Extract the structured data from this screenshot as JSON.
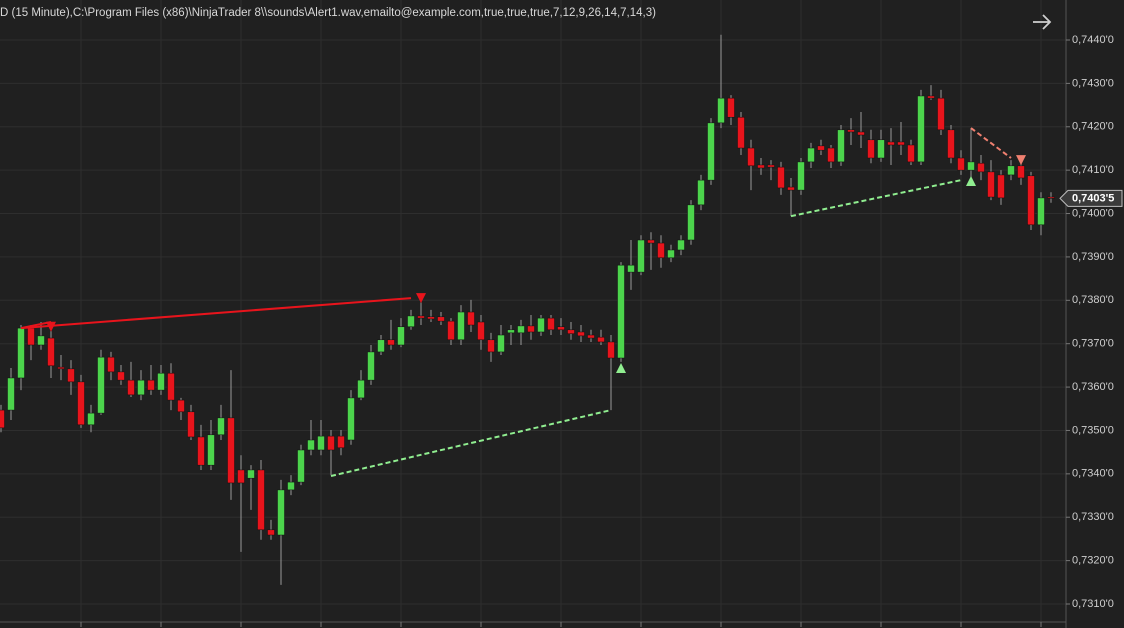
{
  "chart_data": {
    "type": "candlestick",
    "title": "D (15 Minute),C:\\Program Files (x86)\\NinjaTrader 8\\\\sounds\\Alert1.wav,emailto@example.com,true,true,true,7,12,9,26,14,7,14,3)",
    "up_color": "#4cd44c",
    "down_color": "#e8141c",
    "wick_color": "#9a9a9a",
    "open": [
      0.73547,
      0.73547,
      0.73621,
      0.73736,
      0.73697,
      0.73713,
      0.73646,
      0.73642,
      0.73612,
      0.73513,
      0.7354,
      0.73669,
      0.73635,
      0.73616,
      0.73582,
      0.73616,
      0.73593,
      0.73632,
      0.7357,
      0.73543,
      0.73485,
      0.7342,
      0.7349,
      0.73529,
      0.73409,
      0.7339,
      0.73409,
      0.73271,
      0.73259,
      0.73363,
      0.73381,
      0.73455,
      0.73455,
      0.73487,
      0.73487,
      0.73478,
      0.73575,
      0.73616,
      0.73681,
      0.73709,
      0.73697,
      0.73739,
      0.73764,
      0.73762,
      0.73762,
      0.73752,
      0.73709,
      0.73773,
      0.7375,
      0.73709,
      0.73681,
      0.73725,
      0.73725,
      0.73741,
      0.73727,
      0.73759,
      0.73739,
      0.73732,
      0.73727,
      0.7372,
      0.73715,
      0.73704,
      0.73667,
      0.73865,
      0.73865,
      0.73939,
      0.73932,
      0.73898,
      0.73916,
      0.73939,
      0.7402,
      0.74077,
      0.74209,
      0.74266,
      0.74222,
      0.74151,
      0.74112,
      0.74112,
      0.74107,
      0.74061,
      0.74054,
      0.74119,
      0.74156,
      0.74151,
      0.74119,
      0.74193,
      0.74188,
      0.7417,
      0.74128,
      0.74165,
      0.74165,
      0.74158,
      0.74119,
      0.74271,
      0.74266,
      0.74193,
      0.74128,
      0.741,
      0.74116,
      0.74096,
      0.74089,
      0.74089,
      0.7411,
      0.74087,
      0.73974,
      0.74038
    ],
    "high": [
      0.73559,
      0.73644,
      0.73743,
      0.73743,
      0.7375,
      0.7375,
      0.73674,
      0.73662,
      0.73628,
      0.73559,
      0.73686,
      0.73681,
      0.73651,
      0.73658,
      0.73639,
      0.73651,
      0.73651,
      0.73655,
      0.73575,
      0.73559,
      0.73513,
      0.73524,
      0.73559,
      0.73639,
      0.73443,
      0.7342,
      0.73432,
      0.73294,
      0.73386,
      0.73397,
      0.73467,
      0.73524,
      0.73524,
      0.73501,
      0.73501,
      0.73593,
      0.73639,
      0.73697,
      0.7372,
      0.73755,
      0.73759,
      0.73778,
      0.73801,
      0.73778,
      0.73773,
      0.73759,
      0.73789,
      0.73801,
      0.73766,
      0.73725,
      0.73743,
      0.73743,
      0.73755,
      0.73766,
      0.73766,
      0.73766,
      0.73759,
      0.7375,
      0.73743,
      0.73732,
      0.73732,
      0.7372,
      0.73888,
      0.73939,
      0.7395,
      0.73957,
      0.7395,
      0.73928,
      0.7395,
      0.74031,
      0.74089,
      0.7422,
      0.74412,
      0.74273,
      0.74234,
      0.7417,
      0.74128,
      0.74123,
      0.74119,
      0.74082,
      0.74128,
      0.74163,
      0.7417,
      0.74158,
      0.74204,
      0.7422,
      0.74234,
      0.74193,
      0.74193,
      0.74197,
      0.74211,
      0.7417,
      0.74285,
      0.74296,
      0.74285,
      0.74204,
      0.74146,
      0.74197,
      0.74135,
      0.74123,
      0.741,
      0.74123,
      0.74116,
      0.74096,
      0.74049,
      0.74049
    ],
    "low": [
      0.73496,
      0.73524,
      0.73593,
      0.73662,
      0.73686,
      0.73621,
      0.73616,
      0.73582,
      0.73506,
      0.73496,
      0.73536,
      0.73616,
      0.73605,
      0.73577,
      0.7357,
      0.73582,
      0.73582,
      0.73547,
      0.73524,
      0.73478,
      0.73409,
      0.73409,
      0.73478,
      0.7334,
      0.7322,
      0.73317,
      0.73248,
      0.73248,
      0.73144,
      0.73351,
      0.73374,
      0.73443,
      0.73443,
      0.73397,
      0.73443,
      0.73467,
      0.7357,
      0.73605,
      0.73674,
      0.73686,
      0.73692,
      0.73732,
      0.73743,
      0.7375,
      0.73743,
      0.73697,
      0.73697,
      0.73727,
      0.73686,
      0.73658,
      0.73674,
      0.73697,
      0.73697,
      0.73709,
      0.73718,
      0.7372,
      0.7372,
      0.73709,
      0.73704,
      0.73704,
      0.73697,
      0.73547,
      0.73658,
      0.73824,
      0.73858,
      0.7387,
      0.73875,
      0.73888,
      0.73904,
      0.73928,
      0.74008,
      0.74066,
      0.74197,
      0.74204,
      0.74135,
      0.74054,
      0.74089,
      0.74077,
      0.74043,
      0.73994,
      0.74043,
      0.74105,
      0.74135,
      0.74105,
      0.7411,
      0.74158,
      0.74151,
      0.74116,
      0.74119,
      0.74112,
      0.74135,
      0.74112,
      0.74112,
      0.74262,
      0.74181,
      0.74116,
      0.74089,
      0.74082,
      0.74077,
      0.74031,
      0.7402,
      0.74077,
      0.74066,
      0.73962,
      0.7395,
      0.74025
    ],
    "close": [
      0.73506,
      0.73621,
      0.73736,
      0.73697,
      0.73718,
      0.73649,
      0.73642,
      0.73612,
      0.73513,
      0.7354,
      0.73669,
      0.73635,
      0.73616,
      0.73582,
      0.73616,
      0.73593,
      0.73632,
      0.7357,
      0.73543,
      0.73485,
      0.7342,
      0.7349,
      0.73529,
      0.73379,
      0.73379,
      0.73409,
      0.73271,
      0.73259,
      0.73363,
      0.73381,
      0.73455,
      0.73478,
      0.73487,
      0.73455,
      0.7346,
      0.73575,
      0.73616,
      0.73681,
      0.73709,
      0.73697,
      0.73739,
      0.73764,
      0.73759,
      0.73757,
      0.73752,
      0.73709,
      0.73773,
      0.73743,
      0.73709,
      0.73681,
      0.7372,
      0.73732,
      0.73741,
      0.73727,
      0.73759,
      0.73732,
      0.73732,
      0.73723,
      0.73718,
      0.73713,
      0.73704,
      0.73667,
      0.73881,
      0.73881,
      0.73939,
      0.73932,
      0.73898,
      0.73916,
      0.73939,
      0.7402,
      0.74077,
      0.74209,
      0.74266,
      0.74222,
      0.74151,
      0.7411,
      0.74105,
      0.74107,
      0.74059,
      0.74054,
      0.74119,
      0.74151,
      0.74146,
      0.74119,
      0.74193,
      0.74188,
      0.74181,
      0.74128,
      0.7417,
      0.74158,
      0.74158,
      0.74119,
      0.74271,
      0.74266,
      0.74193,
      0.74128,
      0.741,
      0.74119,
      0.74096,
      0.74038,
      0.74036,
      0.7411,
      0.74082,
      0.73974,
      0.74036,
      0.74035
    ],
    "ylim": [
      0.730585,
      0.744922
    ],
    "yticks": [
      {
        "value": 0.731,
        "label": "0,7310'0"
      },
      {
        "value": 0.732,
        "label": "0,7320'0"
      },
      {
        "value": 0.733,
        "label": "0,7330'0"
      },
      {
        "value": 0.734,
        "label": "0,7340'0"
      },
      {
        "value": 0.735,
        "label": "0,7350'0"
      },
      {
        "value": 0.736,
        "label": "0,7360'0"
      },
      {
        "value": 0.737,
        "label": "0,7370'0"
      },
      {
        "value": 0.738,
        "label": "0,7380'0"
      },
      {
        "value": 0.739,
        "label": "0,7390'0"
      },
      {
        "value": 0.74,
        "label": "0,7400'0"
      },
      {
        "value": 0.741,
        "label": "0,7410'0"
      },
      {
        "value": 0.742,
        "label": "0,7420'0"
      },
      {
        "value": 0.743,
        "label": "0,7430'0"
      },
      {
        "value": 0.744,
        "label": "0,7440'0"
      }
    ],
    "last_price": {
      "value": 0.74035,
      "label": "0,7403'5"
    },
    "grid": true,
    "trendlines": [
      {
        "color": "#e8141c",
        "dashed": false,
        "bars": [
          2,
          41
        ],
        "prices": [
          0.73736,
          0.73805
        ]
      },
      {
        "color": "#e8141c",
        "dashed": false,
        "bars": [
          2,
          5
        ],
        "prices": [
          0.73736,
          0.7375
        ]
      },
      {
        "color": "#90ee90",
        "dashed": true,
        "bars": [
          33,
          61
        ],
        "prices": [
          0.73395,
          0.73547
        ]
      },
      {
        "color": "#90ee90",
        "dashed": true,
        "bars": [
          79,
          96
        ],
        "prices": [
          0.73994,
          0.74077
        ]
      },
      {
        "color": "#f08070",
        "dashed": true,
        "bars": [
          97,
          101
        ],
        "prices": [
          0.74197,
          0.74128
        ]
      }
    ],
    "markers": [
      {
        "bar": 5,
        "price": 0.73739,
        "shape": "down",
        "color": "#e8141c"
      },
      {
        "bar": 42,
        "price": 0.73805,
        "shape": "down",
        "color": "#e8141c"
      },
      {
        "bar": 62,
        "price": 0.73644,
        "shape": "up",
        "color": "#90ee90"
      },
      {
        "bar": 97,
        "price": 0.74075,
        "shape": "up",
        "color": "#90ee90"
      },
      {
        "bar": 102,
        "price": 0.74123,
        "shape": "down",
        "color": "#f08070"
      }
    ]
  }
}
